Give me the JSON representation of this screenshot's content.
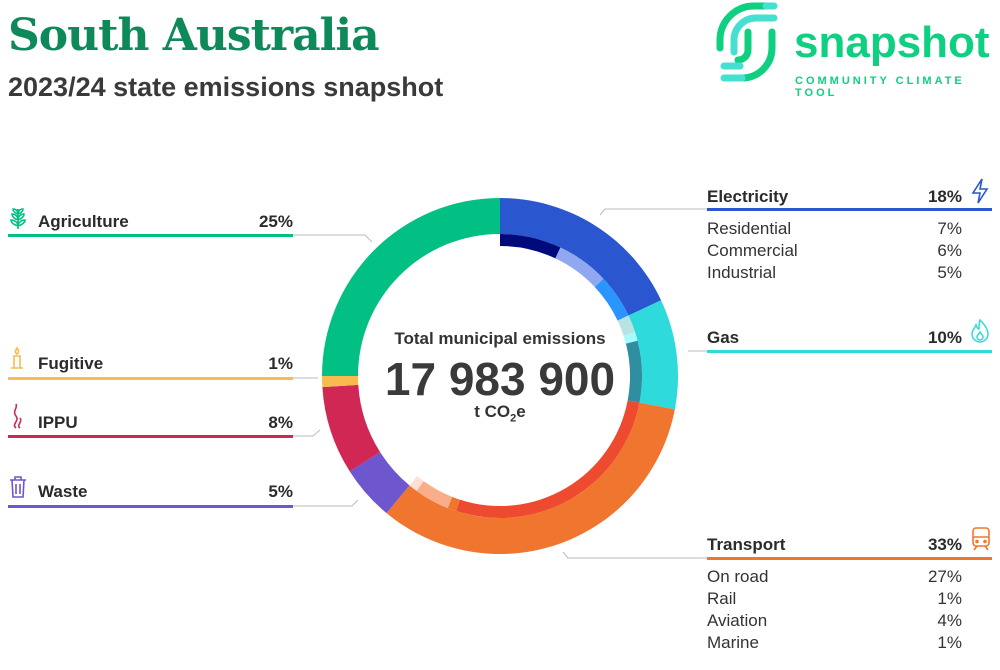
{
  "header": {
    "title": "South Australia",
    "subtitle": "2023/24 state emissions snapshot"
  },
  "logo": {
    "word": "snapshot",
    "tagline": "COMMUNITY CLIMATE TOOL"
  },
  "center": {
    "label": "Total municipal emissions",
    "value": "17 983 900",
    "unit_prefix": "t CO",
    "unit_sub": "2",
    "unit_suffix": "e"
  },
  "chart_data": {
    "type": "pie",
    "total": "17 983 900 t CO2e",
    "sectors": [
      {
        "name": "Electricity",
        "value": 18,
        "label": "18%",
        "color": "#2a56d0",
        "icon": "lightning-icon",
        "subs": [
          {
            "name": "Residential",
            "value": 7,
            "label": "7%",
            "color": "#000a7a"
          },
          {
            "name": "Commercial",
            "value": 6,
            "label": "6%",
            "color": "#8fa8ef"
          },
          {
            "name": "Industrial",
            "value": 5,
            "label": "5%",
            "color": "#2b95ff"
          }
        ]
      },
      {
        "name": "Gas",
        "value": 10,
        "label": "10%",
        "color": "#2fdadc",
        "icon": "flame-icon",
        "subs": [
          {
            "value": 2,
            "color": "#b7e3e3"
          },
          {
            "value": 1,
            "color": "#a6fbff"
          },
          {
            "value": 7,
            "color": "#2f8fa0"
          }
        ]
      },
      {
        "name": "Transport",
        "value": 33,
        "label": "33%",
        "color": "#f07630",
        "icon": "train-icon",
        "subs": [
          {
            "name": "On road",
            "value": 27,
            "label": "27%",
            "color": "#ee4a30"
          },
          {
            "name": "Rail",
            "value": 1,
            "label": "1%",
            "color": "#f07630"
          },
          {
            "name": "Aviation",
            "value": 4,
            "label": "4%",
            "color": "#f9ad88"
          },
          {
            "name": "Marine",
            "value": 1,
            "label": "1%",
            "color": "#fde0d2"
          }
        ]
      },
      {
        "name": "Waste",
        "value": 5,
        "label": "5%",
        "color": "#6e56cf",
        "icon": "bin-icon"
      },
      {
        "name": "IPPU",
        "value": 8,
        "label": "8%",
        "color": "#d02755",
        "icon": "smoke-icon"
      },
      {
        "name": "Fugitive",
        "value": 1,
        "label": "1%",
        "color": "#f9bb4f",
        "icon": "candle-icon"
      },
      {
        "name": "Agriculture",
        "value": 25,
        "label": "25%",
        "color": "#02c084",
        "icon": "plant-icon"
      }
    ]
  }
}
